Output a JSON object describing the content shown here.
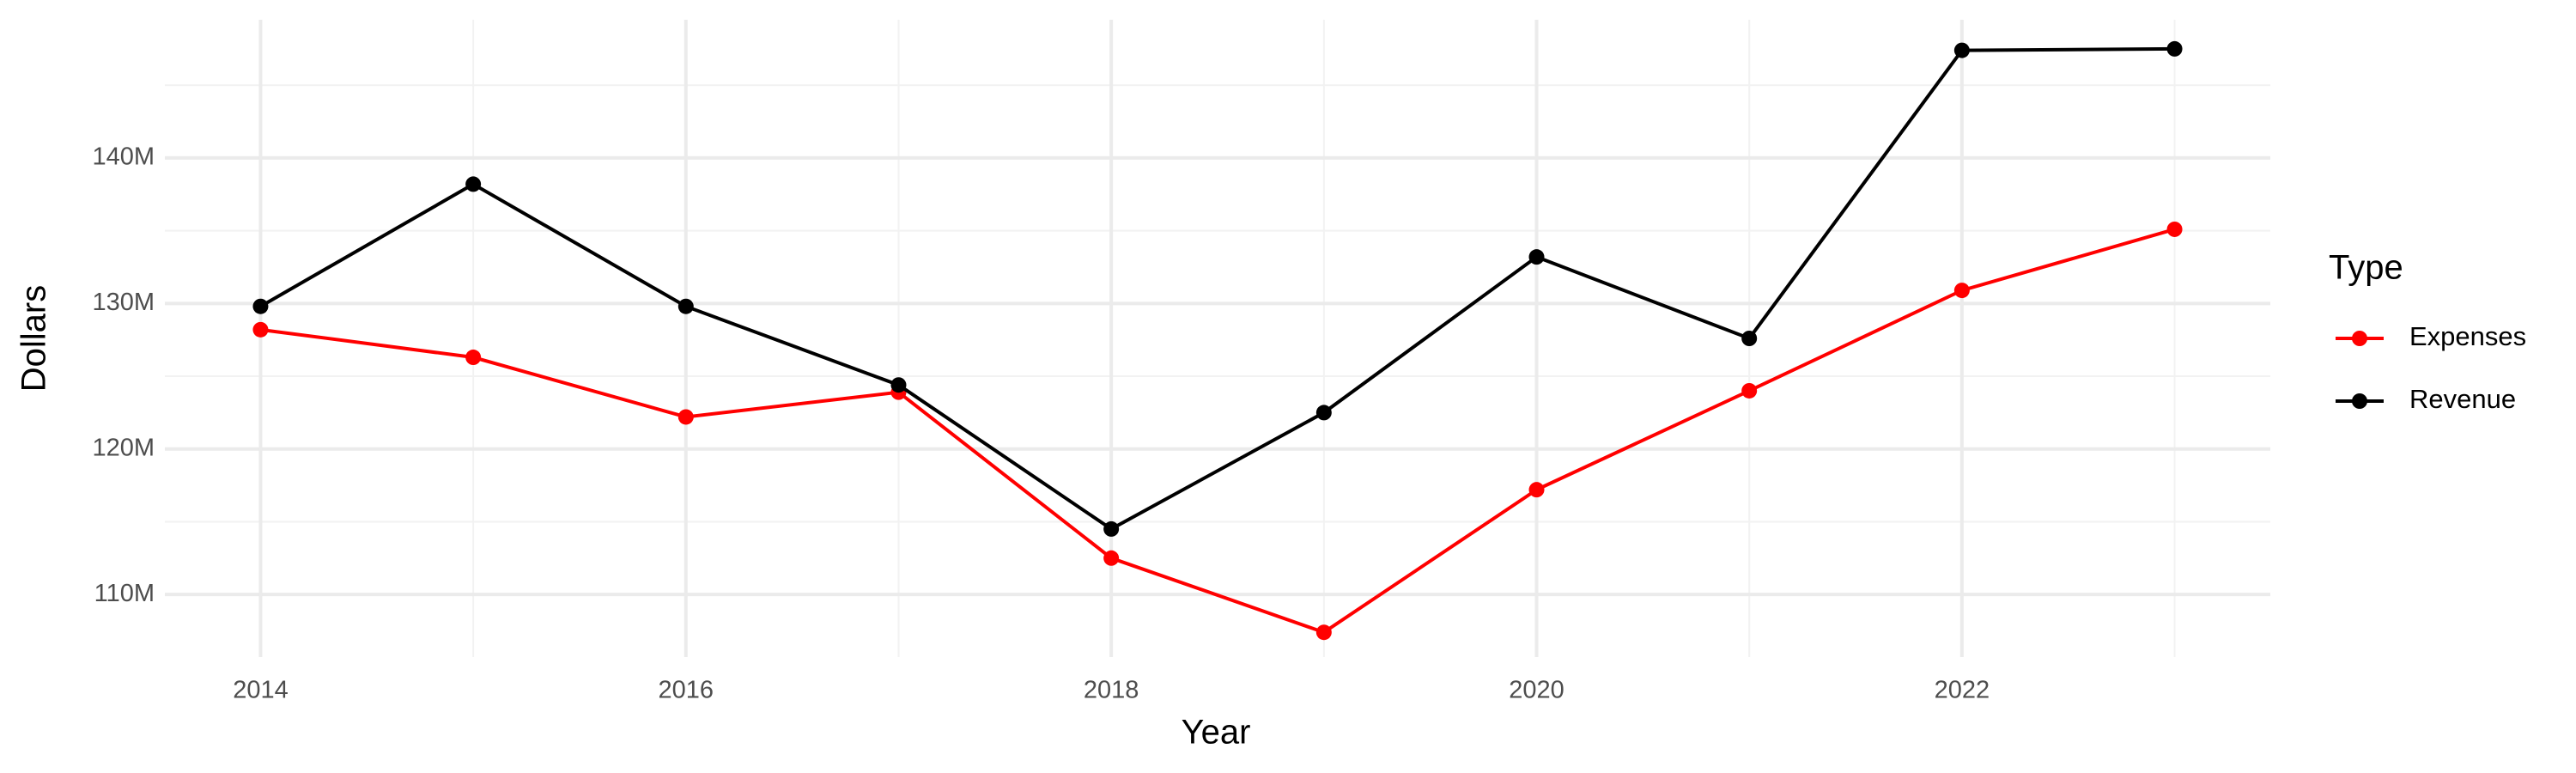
{
  "chart_data": {
    "type": "line",
    "x_label": "Year",
    "y_label": "Dollars",
    "legend_title": "Type",
    "x": [
      2014,
      2015,
      2016,
      2017,
      2018,
      2019,
      2020,
      2021,
      2022,
      2023
    ],
    "series": [
      {
        "name": "Expenses",
        "color": "#ff0000",
        "values": [
          128200000,
          126300000,
          122200000,
          123900000,
          112500000,
          107400000,
          117200000,
          124000000,
          130900000,
          135100000
        ]
      },
      {
        "name": "Revenue",
        "color": "#000000",
        "values": [
          129800000,
          138200000,
          129800000,
          124400000,
          114500000,
          122500000,
          133200000,
          127600000,
          147400000,
          147500000
        ]
      }
    ],
    "xlim": [
      2013.55,
      2023.45
    ],
    "xticks": [
      2014,
      2016,
      2018,
      2020,
      2022
    ],
    "ylim": [
      105700000,
      149500000
    ],
    "yticks": [
      {
        "value": 110000000,
        "label": "110M"
      },
      {
        "value": 120000000,
        "label": "120M"
      },
      {
        "value": 130000000,
        "label": "130M"
      },
      {
        "value": 140000000,
        "label": "140M"
      }
    ],
    "grid": true,
    "legend": "right"
  }
}
